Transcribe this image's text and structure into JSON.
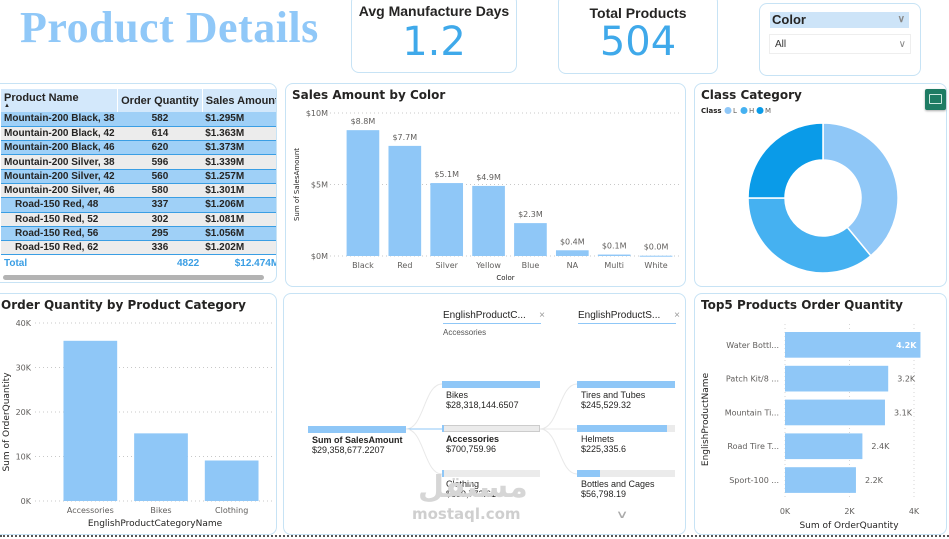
{
  "page": {
    "title": "Product Details",
    "watermark": "mostaql.com",
    "watermark_ar": "مستقل"
  },
  "kpis": [
    {
      "label": "Avg Manufacture Days",
      "value": "1.2"
    },
    {
      "label": "Total Products",
      "value": "504"
    }
  ],
  "slicer": {
    "field": "Color",
    "selected": "All",
    "chevron": "chevron-down-icon"
  },
  "matrix": {
    "columns": [
      "Product Name",
      "Order Quantity",
      "Sales Amount"
    ],
    "sort_indicator": "▲",
    "rows": [
      {
        "name": "Mountain-200 Black, 38",
        "qty": "582",
        "sales": "$1.295M"
      },
      {
        "name": "Mountain-200 Black, 42",
        "qty": "614",
        "sales": "$1.363M"
      },
      {
        "name": "Mountain-200 Black, 46",
        "qty": "620",
        "sales": "$1.373M"
      },
      {
        "name": "Mountain-200 Silver, 38",
        "qty": "596",
        "sales": "$1.339M"
      },
      {
        "name": "Mountain-200 Silver, 42",
        "qty": "560",
        "sales": "$1.257M"
      },
      {
        "name": "Mountain-200 Silver, 46",
        "qty": "580",
        "sales": "$1.301M"
      },
      {
        "name": "Road-150 Red, 48",
        "qty": "337",
        "sales": "$1.206M"
      },
      {
        "name": "Road-150 Red, 52",
        "qty": "302",
        "sales": "$1.081M"
      },
      {
        "name": "Road-150 Red, 56",
        "qty": "295",
        "sales": "$1.056M"
      },
      {
        "name": "Road-150 Red, 62",
        "qty": "336",
        "sales": "$1.202M"
      }
    ],
    "total": {
      "label": "Total",
      "qty": "4822",
      "sales": "$12.474M"
    }
  },
  "decomposition": {
    "root": {
      "label": "Sum of SalesAmount",
      "value": "$29,358,677.2207"
    },
    "level1": {
      "header": "EnglishProductC...",
      "filter": "Accessories",
      "items": [
        {
          "label": "Bikes",
          "value": "$28,318,144.6507",
          "fill": 1.0
        },
        {
          "label": "Accessories",
          "value": "$700,759.96",
          "fill": 0.024,
          "selected": true
        },
        {
          "label": "Clothing",
          "value": "$339,772.61",
          "fill": 0.012
        }
      ]
    },
    "level2": {
      "header": "EnglishProductS...",
      "items": [
        {
          "label": "Tires and Tubes",
          "value": "$245,529.32",
          "fill": 1.0
        },
        {
          "label": "Helmets",
          "value": "$225,335.6",
          "fill": 0.918
        },
        {
          "label": "Bottles and Cages",
          "value": "$56,798.19",
          "fill": 0.231
        }
      ]
    },
    "close_icon": "×",
    "more_icon": "chevron-down-icon"
  },
  "chart_data": [
    {
      "id": "sales-by-color",
      "type": "bar",
      "title": "Sales Amount by Color",
      "xlabel": "Color",
      "ylabel": "Sum of SalesAmount",
      "categories": [
        "Black",
        "Red",
        "Silver",
        "Yellow",
        "Blue",
        "NA",
        "Multi",
        "White"
      ],
      "values": [
        8.8,
        7.7,
        5.1,
        4.9,
        2.3,
        0.4,
        0.1,
        0.02
      ],
      "data_labels": [
        "$8.8M",
        "$7.7M",
        "$5.1M",
        "$4.9M",
        "$2.3M",
        "$0.4M",
        "$0.1M",
        "$0.0M"
      ],
      "units": "$M",
      "ylim": [
        0,
        10
      ],
      "yticks": [
        0,
        5,
        10
      ],
      "ytick_labels": [
        "$0M",
        "$5M",
        "$10M"
      ],
      "grid": true,
      "color": "#8fc7f7"
    },
    {
      "id": "class-category",
      "type": "pie",
      "title": "Class Category",
      "legend_title": "Class",
      "legend_position": "top-left",
      "categories": [
        "L",
        "H",
        "M"
      ],
      "values": [
        0.39,
        0.36,
        0.25
      ],
      "colors": [
        "#8fc7f7",
        "#45b1f1",
        "#0a9be8"
      ],
      "donut": true
    },
    {
      "id": "order-qty-by-category",
      "type": "bar",
      "title": "Order Quantity by Product Category",
      "xlabel": "EnglishProductCategoryName",
      "ylabel": "Sum of OrderQuantity",
      "categories": [
        "Accessories",
        "Bikes",
        "Clothing"
      ],
      "values": [
        36000,
        15200,
        9100
      ],
      "ylim": [
        0,
        40000
      ],
      "yticks": [
        0,
        10000,
        20000,
        30000,
        40000
      ],
      "ytick_labels": [
        "0K",
        "10K",
        "20K",
        "30K",
        "40K"
      ],
      "grid": true,
      "color": "#8fc7f7"
    },
    {
      "id": "top5-products",
      "type": "bar",
      "orientation": "horizontal",
      "title": "Top5 Products Order Quantity",
      "xlabel": "Sum of OrderQuantity",
      "ylabel": "EnglishProductName",
      "categories": [
        "Water Bottl...",
        "Patch Kit/8 ...",
        "Mountain Ti...",
        "Road Tire T...",
        "Sport-100 ..."
      ],
      "values": [
        4200,
        3200,
        3100,
        2400,
        2200
      ],
      "data_labels": [
        "4.2K",
        "3.2K",
        "3.1K",
        "2.4K",
        "2.2K"
      ],
      "xlim": [
        0,
        4000
      ],
      "xticks": [
        0,
        2000,
        4000
      ],
      "xtick_labels": [
        "0K",
        "2K",
        "4K"
      ],
      "grid": true,
      "color": "#8fc7f7"
    }
  ]
}
